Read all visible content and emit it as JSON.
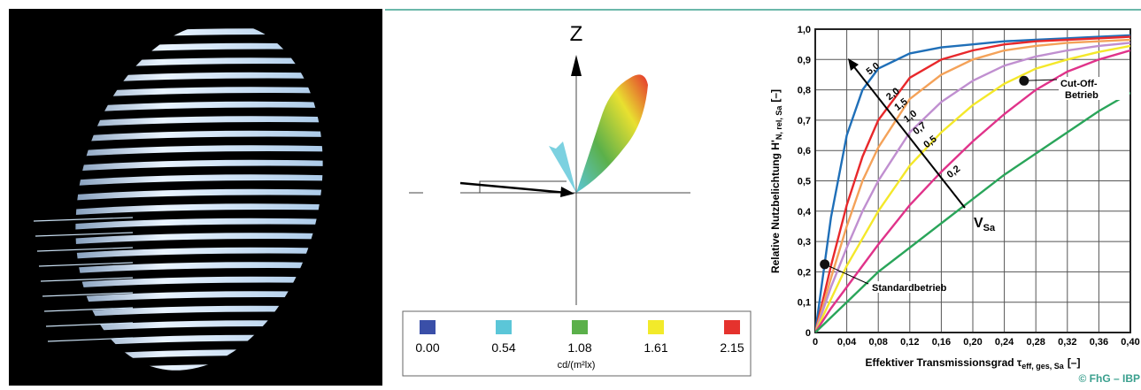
{
  "diagram": {
    "axis_label": "Z",
    "legend": {
      "items": [
        {
          "color": "#3a4fa8",
          "label": "0.00"
        },
        {
          "color": "#5bc6d8",
          "label": "0.54"
        },
        {
          "color": "#5bb04a",
          "label": "1.08"
        },
        {
          "color": "#f2ea2a",
          "label": "1.61"
        },
        {
          "color": "#e5322d",
          "label": "2.15"
        }
      ],
      "unit": "cd/(m²lx)"
    }
  },
  "chart_data": {
    "type": "line",
    "x": [
      0,
      0.02,
      0.04,
      0.06,
      0.08,
      0.12,
      0.16,
      0.2,
      0.24,
      0.28,
      0.32,
      0.36,
      0.4
    ],
    "series": [
      {
        "name": "5,0",
        "color": "#1f6fb8",
        "values": [
          0,
          0.38,
          0.65,
          0.8,
          0.87,
          0.92,
          0.94,
          0.95,
          0.96,
          0.965,
          0.97,
          0.975,
          0.98
        ]
      },
      {
        "name": "2,0",
        "color": "#e8282b",
        "values": [
          0,
          0.22,
          0.42,
          0.58,
          0.7,
          0.84,
          0.9,
          0.93,
          0.95,
          0.96,
          0.965,
          0.97,
          0.975
        ]
      },
      {
        "name": "1,5",
        "color": "#f4a259",
        "values": [
          0,
          0.18,
          0.35,
          0.5,
          0.61,
          0.77,
          0.85,
          0.9,
          0.93,
          0.945,
          0.955,
          0.96,
          0.965
        ]
      },
      {
        "name": "1,0",
        "color": "#c08fd0",
        "values": [
          0,
          0.15,
          0.28,
          0.4,
          0.5,
          0.66,
          0.76,
          0.83,
          0.88,
          0.91,
          0.93,
          0.945,
          0.955
        ]
      },
      {
        "name": "0,7",
        "color": "#f4e82a",
        "values": [
          0,
          0.11,
          0.22,
          0.31,
          0.4,
          0.55,
          0.66,
          0.75,
          0.82,
          0.87,
          0.9,
          0.925,
          0.945
        ]
      },
      {
        "name": "0,5",
        "color": "#e0338a",
        "values": [
          0,
          0.08,
          0.15,
          0.22,
          0.29,
          0.42,
          0.53,
          0.63,
          0.72,
          0.8,
          0.86,
          0.9,
          0.93
        ]
      },
      {
        "name": "0,2",
        "color": "#2aa55a",
        "values": [
          0,
          0.05,
          0.1,
          0.15,
          0.2,
          0.28,
          0.36,
          0.44,
          0.52,
          0.59,
          0.66,
          0.73,
          0.79
        ]
      }
    ],
    "xlim": [
      0,
      0.4
    ],
    "xticks": [
      0,
      {
        "value": 0.04,
        "label": "0,04"
      },
      {
        "value": 0.08,
        "label": "0,08"
      },
      {
        "value": 0.12,
        "label": "0,12"
      },
      {
        "value": 0.16,
        "label": "0,16"
      },
      {
        "value": 0.2,
        "label": "0,20"
      },
      {
        "value": 0.24,
        "label": "0,24"
      },
      {
        "value": 0.28,
        "label": "0,28"
      },
      {
        "value": 0.32,
        "label": "0,32"
      },
      {
        "value": 0.36,
        "label": "0,36"
      },
      {
        "value": 0.4,
        "label": "0,40"
      }
    ],
    "ylim": [
      0,
      1.0
    ],
    "yticks": [
      0,
      {
        "value": 0.1,
        "label": "0,1"
      },
      {
        "value": 0.2,
        "label": "0,2"
      },
      {
        "value": 0.3,
        "label": "0,3"
      },
      {
        "value": 0.4,
        "label": "0,4"
      },
      {
        "value": 0.5,
        "label": "0,5"
      },
      {
        "value": 0.6,
        "label": "0,6"
      },
      {
        "value": 0.7,
        "label": "0,7"
      },
      {
        "value": 0.8,
        "label": "0,8"
      },
      {
        "value": 0.9,
        "label": "0,9"
      },
      {
        "value": 1.0,
        "label": "1,0"
      }
    ],
    "grid": true,
    "xlabel": {
      "text": "Effektiver Transmissionsgrad τ",
      "subscript": "eff, ges, Sa",
      "unit": "[–]"
    },
    "ylabel": {
      "text": "Relative Nutzbelichtung H'",
      "subscript": "N, rel, Sa",
      "unit": "[–]"
    },
    "arrow_label": {
      "text": "V",
      "subscript": "Sa"
    },
    "annotations": [
      {
        "text": [
          "Cut-Off-",
          "Betrieb"
        ],
        "x": 0.265,
        "y": 0.83
      },
      {
        "text": [
          "Standardbetrieb"
        ],
        "x": 0.012,
        "y": 0.225
      }
    ]
  },
  "credit": "© FhG – IBP"
}
